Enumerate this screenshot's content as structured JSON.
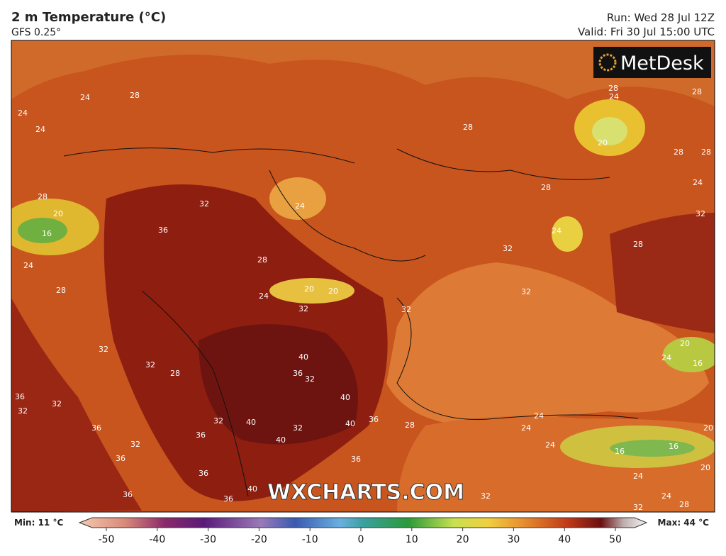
{
  "header": {
    "title": "2 m Temperature (°C)",
    "model": "GFS 0.25°",
    "run": "Run: Wed 28 Jul 12Z",
    "valid": "Valid: Fri 30 Jul 15:00 UTC"
  },
  "logo": "MetDesk",
  "watermark": "WXCHARTS.COM",
  "colorbar": {
    "min_label": "Min: 11 °C",
    "max_label": "Max: 44 °C",
    "range": [
      -50,
      50
    ],
    "ticks": [
      -50,
      -40,
      -30,
      -20,
      -10,
      0,
      10,
      20,
      30,
      40,
      50
    ]
  },
  "map_labels": [
    28,
    24,
    24,
    24,
    28,
    20,
    16,
    24,
    28,
    32,
    36,
    28,
    24,
    20,
    24,
    32,
    20,
    40,
    36,
    32,
    32,
    32,
    28,
    36,
    32,
    32,
    36,
    32,
    36,
    36,
    32,
    40,
    40,
    32,
    40,
    40,
    36,
    28,
    36,
    40,
    36,
    36,
    36,
    28,
    28,
    32,
    32,
    24,
    20,
    28,
    24,
    28,
    28,
    28,
    24,
    32,
    20,
    16,
    24,
    24,
    24,
    24,
    16,
    16,
    20,
    20,
    24,
    24,
    28,
    32,
    32,
    32,
    28
  ]
}
